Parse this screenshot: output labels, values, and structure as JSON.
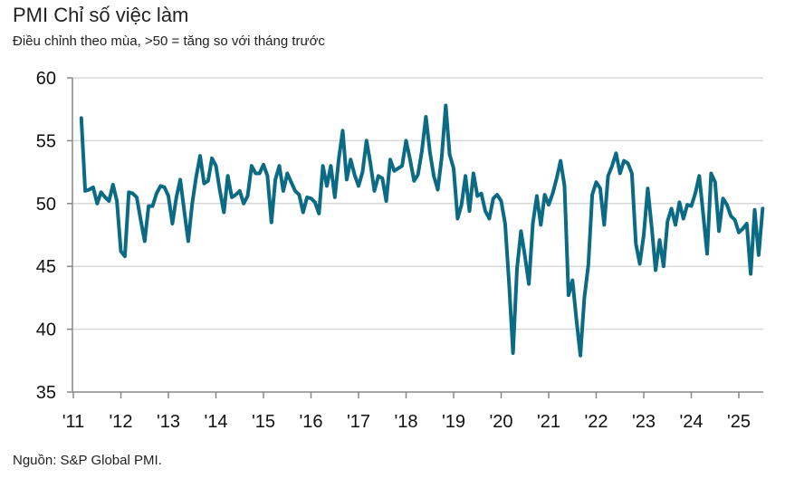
{
  "chart_data": {
    "type": "line",
    "title": "PMI Chỉ số việc làm",
    "subtitle": "Điều chỉnh theo mùa, >50 = tăng so với tháng trước",
    "source": "Nguồn: S&P Global PMI.",
    "xlabel": "",
    "ylabel": "",
    "ylim": [
      35,
      60
    ],
    "yticks": [
      "60",
      "55",
      "50",
      "45",
      "40",
      "35"
    ],
    "xticks": [
      "'11",
      "'12",
      "'13",
      "'14",
      "'15",
      "'16",
      "'17",
      "'18",
      "'19",
      "'20",
      "'21",
      "'22",
      "'23",
      "'24",
      "'25"
    ],
    "grid": "horizontal",
    "line_color": "#0b6b84",
    "x": [
      "2011-03",
      "2011-04",
      "2011-05",
      "2011-06",
      "2011-07",
      "2011-08",
      "2011-09",
      "2011-10",
      "2011-11",
      "2011-12",
      "2012-01",
      "2012-02",
      "2012-03",
      "2012-04",
      "2012-05",
      "2012-06",
      "2012-07",
      "2012-08",
      "2012-09",
      "2012-10",
      "2012-11",
      "2012-12",
      "2013-01",
      "2013-02",
      "2013-03",
      "2013-04",
      "2013-05",
      "2013-06",
      "2013-07",
      "2013-08",
      "2013-09",
      "2013-10",
      "2013-11",
      "2013-12",
      "2014-01",
      "2014-02",
      "2014-03",
      "2014-04",
      "2014-05",
      "2014-06",
      "2014-07",
      "2014-08",
      "2014-09",
      "2014-10",
      "2014-11",
      "2014-12",
      "2015-01",
      "2015-02",
      "2015-03",
      "2015-04",
      "2015-05",
      "2015-06",
      "2015-07",
      "2015-08",
      "2015-09",
      "2015-10",
      "2015-11",
      "2015-12",
      "2016-01",
      "2016-02",
      "2016-03",
      "2016-04",
      "2016-05",
      "2016-06",
      "2016-07",
      "2016-08",
      "2016-09",
      "2016-10",
      "2016-11",
      "2016-12",
      "2017-01",
      "2017-02",
      "2017-03",
      "2017-04",
      "2017-05",
      "2017-06",
      "2017-07",
      "2017-08",
      "2017-09",
      "2017-10",
      "2017-11",
      "2017-12",
      "2018-01",
      "2018-02",
      "2018-03",
      "2018-04",
      "2018-05",
      "2018-06",
      "2018-07",
      "2018-08",
      "2018-09",
      "2018-10",
      "2018-11",
      "2018-12",
      "2019-01",
      "2019-02",
      "2019-03",
      "2019-04",
      "2019-05",
      "2019-06",
      "2019-07",
      "2019-08",
      "2019-09",
      "2019-10",
      "2019-11",
      "2019-12",
      "2020-01",
      "2020-02",
      "2020-03",
      "2020-04",
      "2020-05",
      "2020-06",
      "2020-07",
      "2020-08",
      "2020-09",
      "2020-10",
      "2020-11",
      "2020-12",
      "2021-01",
      "2021-02",
      "2021-03",
      "2021-04",
      "2021-05",
      "2021-06",
      "2021-07",
      "2021-08",
      "2021-09",
      "2021-10",
      "2021-11",
      "2021-12",
      "2022-01",
      "2022-02",
      "2022-03",
      "2022-04",
      "2022-05",
      "2022-06",
      "2022-07",
      "2022-08",
      "2022-09",
      "2022-10",
      "2022-11",
      "2022-12",
      "2023-01",
      "2023-02",
      "2023-03",
      "2023-04",
      "2023-05",
      "2023-06",
      "2023-07",
      "2023-08",
      "2023-09",
      "2023-10",
      "2023-11",
      "2023-12",
      "2024-01",
      "2024-02",
      "2024-03",
      "2024-04",
      "2024-05",
      "2024-06",
      "2024-07",
      "2024-08",
      "2024-09",
      "2024-10",
      "2024-11",
      "2024-12",
      "2025-01",
      "2025-02",
      "2025-03",
      "2025-04",
      "2025-05",
      "2025-06",
      "2025-07"
    ],
    "values": [
      56.8,
      51.0,
      51.1,
      51.3,
      50.0,
      50.9,
      50.5,
      50.2,
      51.5,
      50.2,
      46.2,
      45.8,
      50.9,
      50.8,
      50.5,
      48.7,
      47.0,
      49.8,
      49.8,
      50.8,
      51.4,
      51.3,
      50.6,
      48.4,
      50.5,
      51.9,
      49.4,
      47.0,
      50.0,
      52.1,
      53.8,
      51.6,
      51.8,
      53.6,
      53.0,
      51.0,
      49.3,
      52.2,
      50.5,
      50.7,
      51.0,
      50.0,
      50.6,
      53.0,
      52.4,
      52.4,
      53.1,
      52.2,
      48.5,
      51.9,
      53.0,
      51.0,
      52.4,
      51.7,
      51.0,
      50.7,
      49.3,
      50.5,
      50.4,
      50.1,
      49.2,
      53.0,
      51.4,
      53.0,
      50.5,
      53.5,
      55.8,
      51.9,
      53.5,
      52.3,
      51.4,
      52.5,
      55.0,
      53.2,
      51.0,
      52.2,
      52.0,
      50.2,
      53.5,
      52.6,
      52.8,
      53.0,
      55.0,
      53.5,
      51.8,
      52.3,
      54.2,
      56.9,
      54.1,
      52.2,
      51.1,
      53.7,
      57.8,
      53.9,
      52.8,
      48.8,
      49.9,
      52.2,
      49.4,
      52.4,
      50.6,
      50.8,
      49.4,
      48.8,
      50.4,
      50.7,
      50.2,
      48.4,
      43.6,
      38.1,
      44.8,
      47.8,
      45.8,
      43.6,
      48.4,
      50.6,
      48.3,
      50.7,
      49.9,
      50.8,
      52.0,
      53.4,
      51.4,
      42.7,
      43.9,
      40.8,
      37.9,
      42.5,
      45.1,
      50.7,
      51.7,
      51.2,
      48.3,
      52.2,
      53.0,
      54.0,
      52.4,
      53.4,
      53.2,
      52.4,
      46.8,
      45.2,
      47.5,
      51.2,
      48.1,
      44.7,
      47.1,
      45.0,
      48.6,
      49.6,
      48.3,
      50.1,
      48.8,
      49.9,
      49.8,
      50.8,
      52.2,
      49.2,
      46.0,
      52.4,
      51.7,
      47.8,
      50.4,
      49.9,
      49.0,
      48.7,
      47.7,
      48.0,
      48.4,
      44.4,
      49.5,
      45.9,
      49.6
    ]
  }
}
